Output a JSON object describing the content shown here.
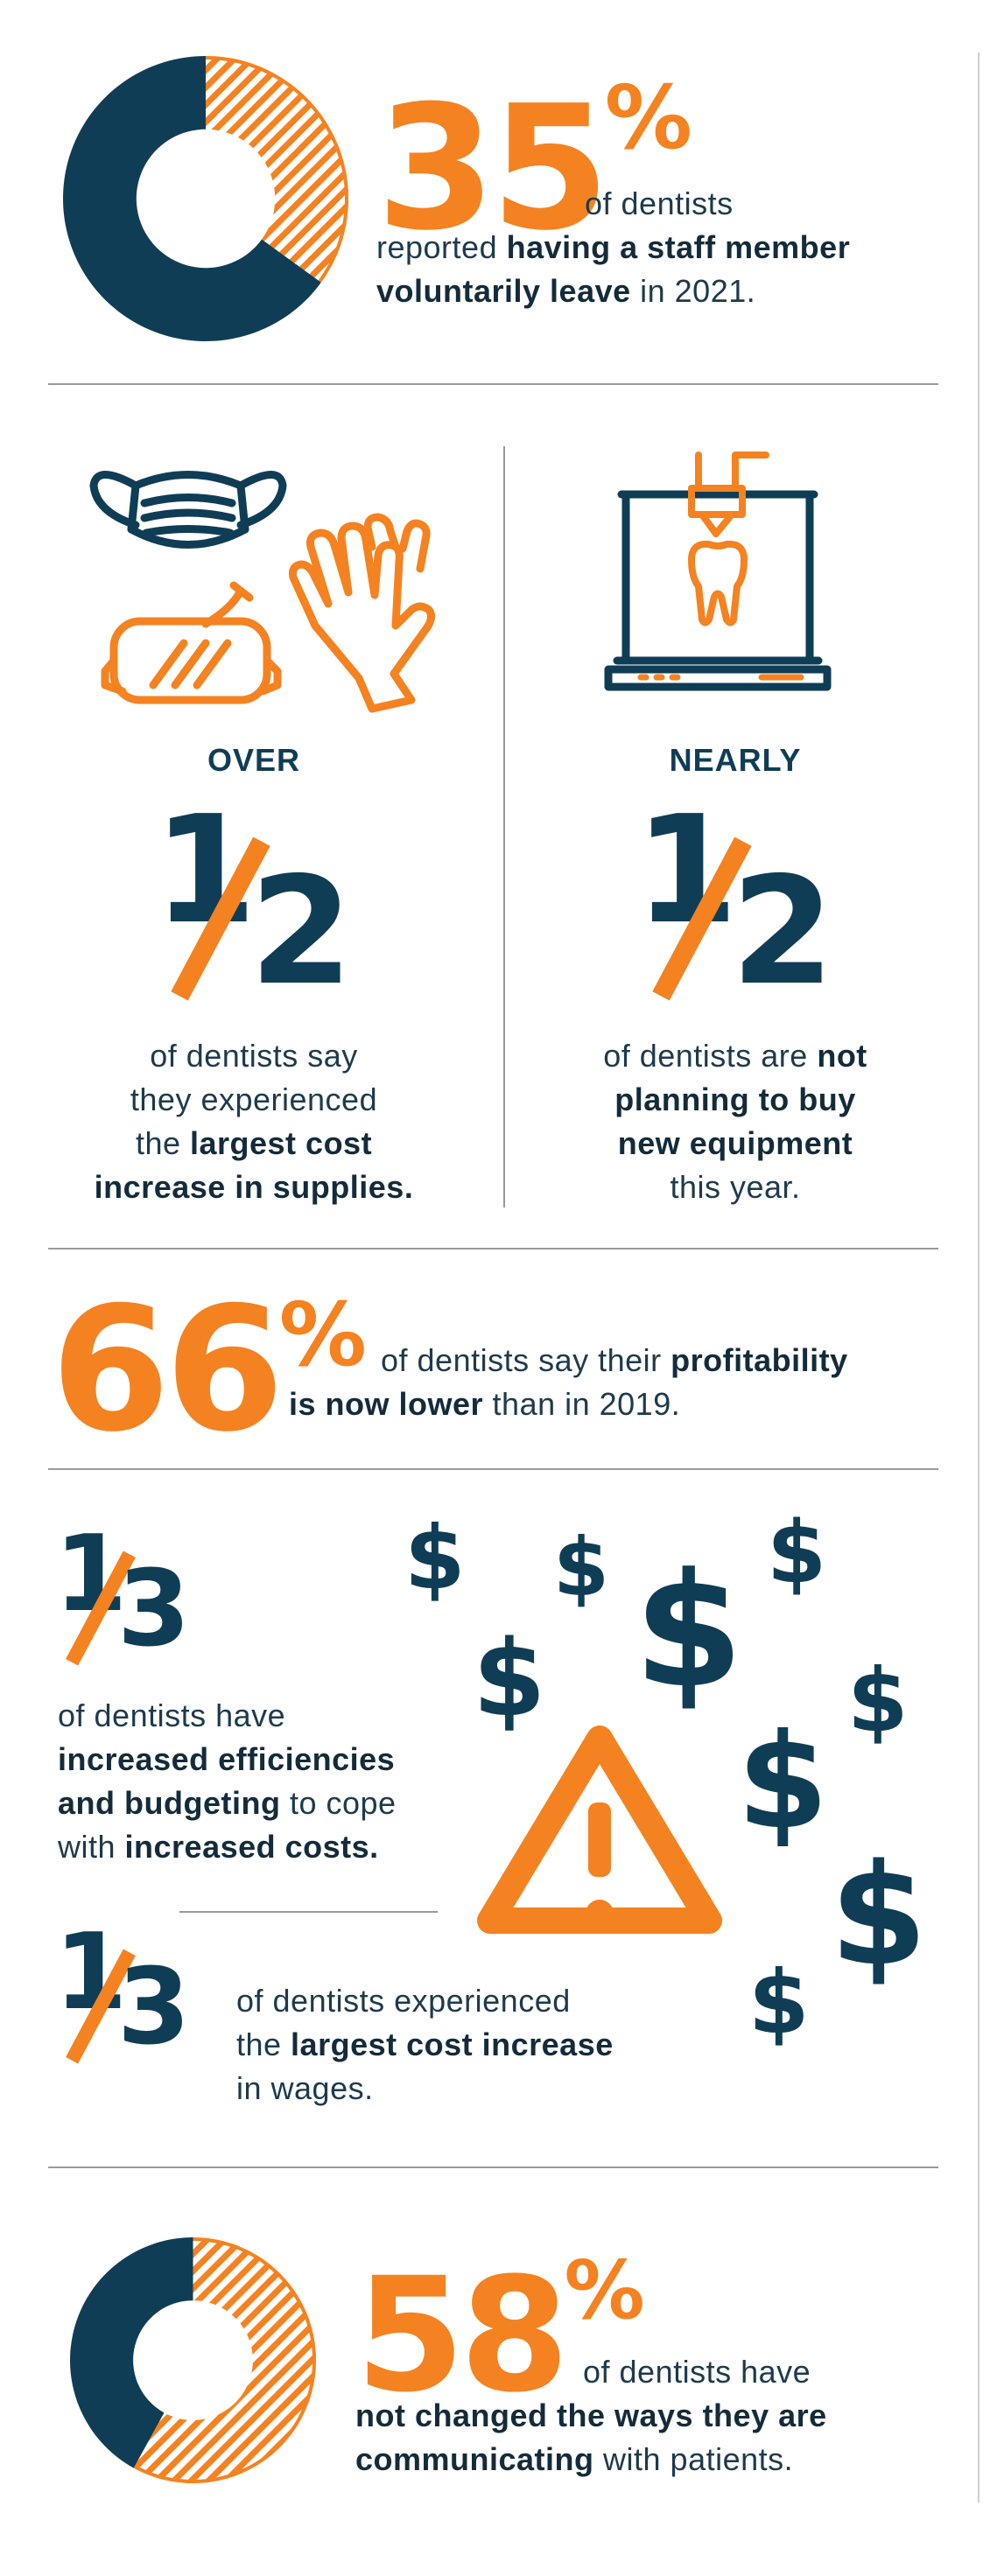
{
  "colors": {
    "accent": "#f58220",
    "navy": "#0f3d56",
    "rule": "#9a9a9a"
  },
  "stat1": {
    "value": "35",
    "pct": "%",
    "fraction": 0.35,
    "line1": "of dentists",
    "line2_pre": "reported ",
    "line2_bold": "having a staff member",
    "line3_bold": "voluntarily leave",
    "line3_post": " in 2021."
  },
  "left_col": {
    "icon_names": [
      "mask-icon",
      "goggles-icon",
      "gloves-icon"
    ],
    "qualifier": "OVER",
    "num": "1",
    "den": "2",
    "l1": "of dentists say",
    "l2": "they experienced",
    "l3_pre": "the ",
    "l3_bold": "largest cost",
    "l4_bold": "increase in supplies."
  },
  "right_col": {
    "icon_names": [
      "dental-printer-icon"
    ],
    "qualifier": "NEARLY",
    "num": "1",
    "den": "2",
    "l1_pre": "of dentists are ",
    "l1_bold": "not",
    "l2_bold": "planning to buy",
    "l3_bold": "new equipment",
    "l4": "this year."
  },
  "stat66": {
    "value": "66",
    "pct": "%",
    "l1_pre": "of dentists say their ",
    "l1_bold": "profitability",
    "l2_bold": "is now lower",
    "l2_post": " than in 2019."
  },
  "third1": {
    "num": "1",
    "den": "3",
    "l1": "of dentists have",
    "l2_bold": "increased efficiencies",
    "l3_bold": "and budgeting",
    "l3_post": " to cope",
    "l4_pre": "with ",
    "l4_bold": "increased costs."
  },
  "third2": {
    "num": "1",
    "den": "3",
    "l1": "of dentists experienced",
    "l2_pre": "the ",
    "l2_bold": "largest cost increase",
    "l3": "in wages."
  },
  "costs_art": {
    "icon_names": [
      "warning-icon",
      "dollar-icon"
    ],
    "dollar": "$"
  },
  "stat58": {
    "value": "58",
    "pct": "%",
    "fraction": 0.58,
    "line1": "of dentists have",
    "line2_bold": "not changed the ways they are",
    "line3_bold": "communicating",
    "line3_post": " with patients."
  }
}
